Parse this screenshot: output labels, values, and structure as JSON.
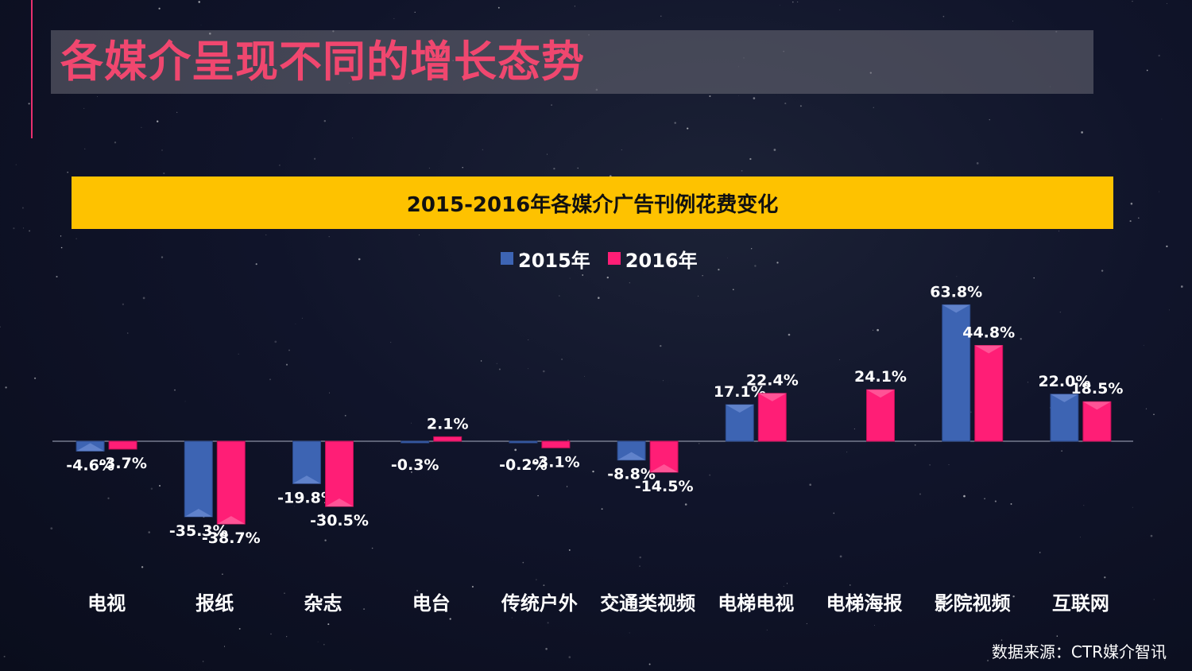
{
  "slide": {
    "title": "各媒介呈现不同的增长态势",
    "source": "数据来源：CTR媒介智讯"
  },
  "colors": {
    "series_2015": "#3d64b3",
    "series_2016": "#ff1e76",
    "banner": "#fec200",
    "title": "#f0476f"
  },
  "chart_data": {
    "type": "bar",
    "title": "2015-2016年各媒介广告刊例花费变化",
    "categories": [
      "电视",
      "报纸",
      "杂志",
      "电台",
      "传统户外",
      "交通类视频",
      "电梯电视",
      "电梯海报",
      "影院视频",
      "互联网"
    ],
    "series": [
      {
        "name": "2015年",
        "values": [
          -4.6,
          -35.3,
          -19.8,
          -0.3,
          -0.2,
          -8.8,
          17.1,
          null,
          63.8,
          22.0
        ],
        "labels": [
          "-4.6%",
          "-35.3%",
          "-19.8%",
          "-0.3%",
          "-0.2%",
          "-8.8%",
          "17.1%",
          "",
          "63.8%",
          "22.0%"
        ]
      },
      {
        "name": "2016年",
        "values": [
          -3.7,
          -38.7,
          -30.5,
          2.1,
          -3.1,
          -14.5,
          22.4,
          24.1,
          44.8,
          18.5
        ],
        "labels": [
          "-3.7%",
          "-38.7%",
          "-30.5%",
          "2.1%",
          "-3.1%",
          "-14.5%",
          "22.4%",
          "24.1%",
          "44.8%",
          "18.5%"
        ]
      }
    ],
    "unit": "%",
    "grid": false,
    "legend_position": "top"
  }
}
